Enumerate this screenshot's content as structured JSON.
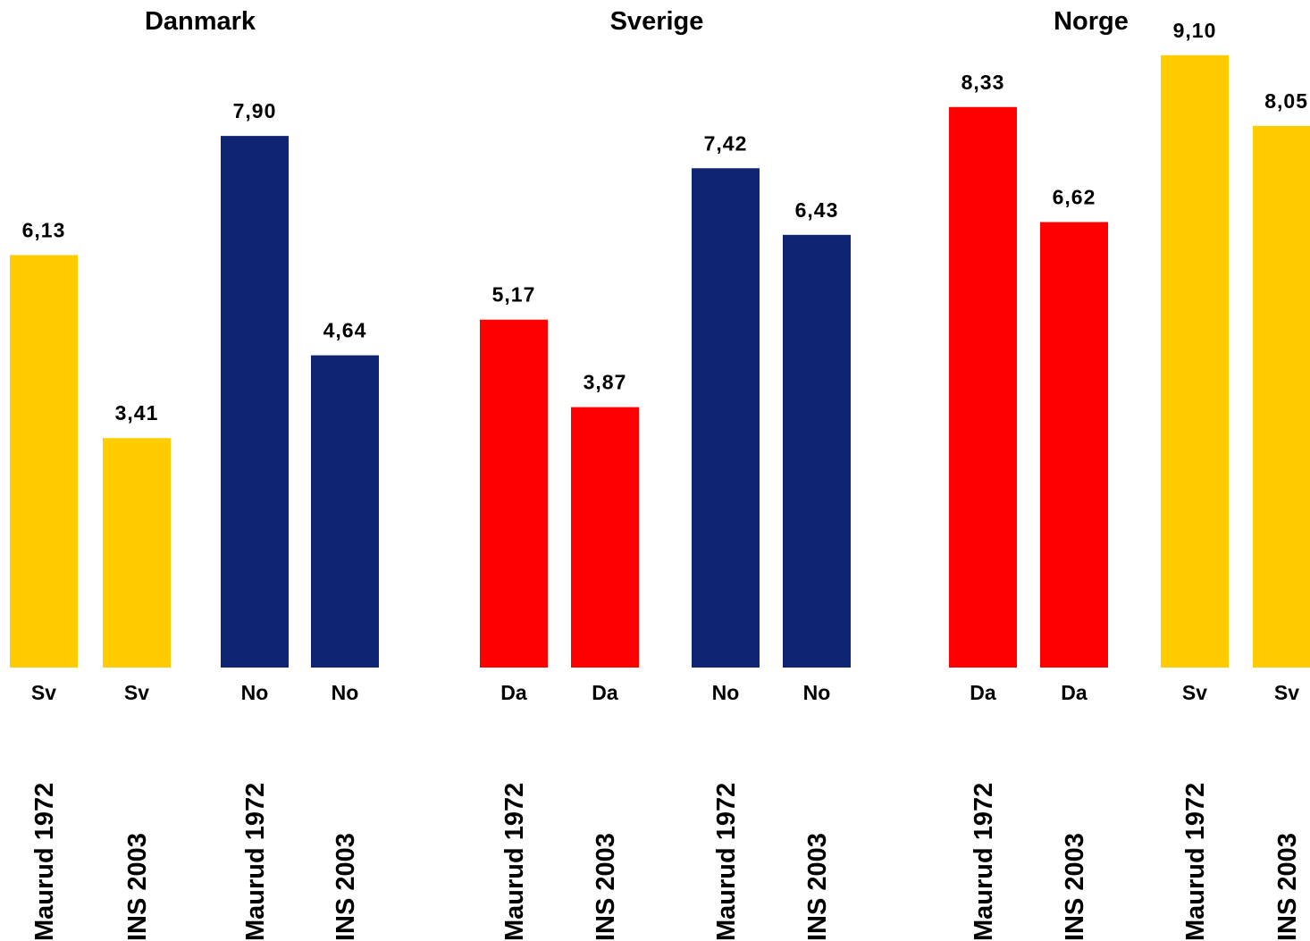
{
  "chart_data": {
    "type": "bar",
    "groups": [
      {
        "title": "Danmark",
        "bars": [
          {
            "language": "Sv",
            "source": "Maurud 1972",
            "value": 6.13,
            "label": "6,13",
            "color": "#FFCC00"
          },
          {
            "language": "Sv",
            "source": "INS 2003",
            "value": 3.41,
            "label": "3,41",
            "color": "#FFCC00"
          },
          {
            "language": "No",
            "source": "Maurud 1972",
            "value": 7.9,
            "label": "7,90",
            "color": "#0F2472"
          },
          {
            "language": "No",
            "source": "INS 2003",
            "value": 4.64,
            "label": "4,64",
            "color": "#0F2472"
          }
        ]
      },
      {
        "title": "Sverige",
        "bars": [
          {
            "language": "Da",
            "source": "Maurud 1972",
            "value": 5.17,
            "label": "5,17",
            "color": "#FF0000"
          },
          {
            "language": "Da",
            "source": "INS 2003",
            "value": 3.87,
            "label": "3,87",
            "color": "#FF0000"
          },
          {
            "language": "No",
            "source": "Maurud 1972",
            "value": 7.42,
            "label": "7,42",
            "color": "#0F2472"
          },
          {
            "language": "No",
            "source": "INS 2003",
            "value": 6.43,
            "label": "6,43",
            "color": "#0F2472"
          }
        ]
      },
      {
        "title": "Norge",
        "bars": [
          {
            "language": "Da",
            "source": "Maurud 1972",
            "value": 8.33,
            "label": "8,33",
            "color": "#FF0000"
          },
          {
            "language": "Da",
            "source": "INS 2003",
            "value": 6.62,
            "label": "6,62",
            "color": "#FF0000"
          },
          {
            "language": "Sv",
            "source": "Maurud 1972",
            "value": 9.1,
            "label": "9,10",
            "color": "#FFCC00"
          },
          {
            "language": "Sv",
            "source": "INS 2003",
            "value": 8.05,
            "label": "8,05",
            "color": "#FFCC00"
          }
        ]
      }
    ],
    "ylim": [
      0,
      10
    ],
    "grid": false,
    "legend": "none"
  }
}
